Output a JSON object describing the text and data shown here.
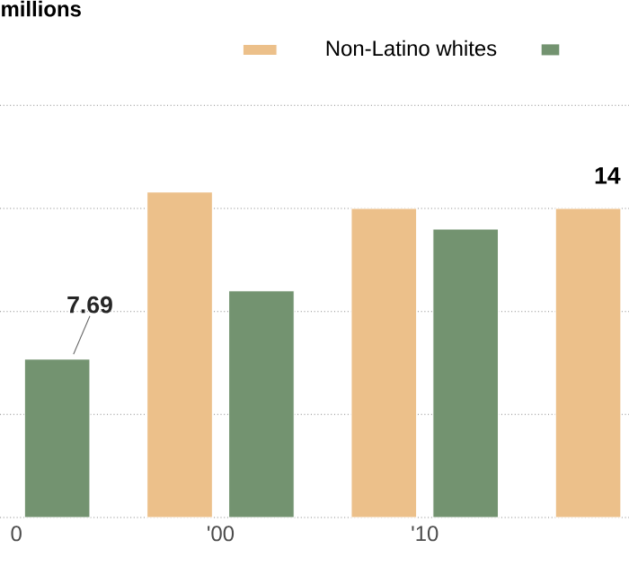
{
  "chart_data": {
    "type": "bar",
    "title": "millions",
    "categories": [
      "0",
      "'00",
      "'10",
      null
    ],
    "series": [
      {
        "name": "Non-Latino whites",
        "color": "#ecc08a",
        "values": [
          null,
          15.8,
          15.0,
          15.0
        ]
      },
      {
        "color": "#739370",
        "values": [
          7.69,
          11.0,
          14.0,
          null
        ],
        "value_labels": [
          "7.69",
          null,
          null,
          null
        ]
      }
    ],
    "ylim": [
      0,
      20
    ],
    "yticks": [
      {
        "value": 0,
        "label": null
      },
      {
        "value": 5,
        "label": null
      },
      {
        "value": 10,
        "label": null
      },
      {
        "value": 15,
        "label": null
      },
      {
        "value": 20,
        "label": null
      }
    ],
    "tick_labels": "x",
    "grid": "y",
    "legend": "top",
    "annotations": [
      "14"
    ]
  }
}
